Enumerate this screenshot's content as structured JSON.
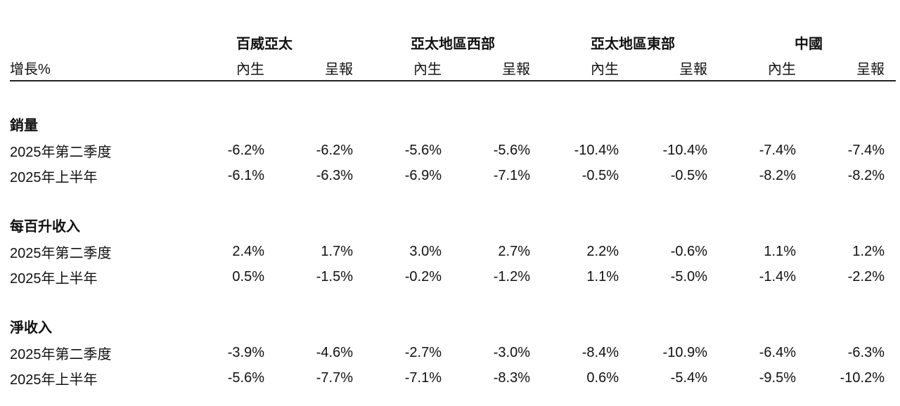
{
  "header": {
    "row_label": "增長%",
    "groups": [
      {
        "name": "百威亞太",
        "sub": [
          "內生",
          "呈報"
        ]
      },
      {
        "name": "亞太地區西部",
        "sub": [
          "內生",
          "呈報"
        ]
      },
      {
        "name": "亞太地區東部",
        "sub": [
          "內生",
          "呈報"
        ]
      },
      {
        "name": "中國",
        "sub": [
          "內生",
          "呈報"
        ]
      }
    ]
  },
  "sections": [
    {
      "title": "銷量",
      "rows": [
        {
          "label": "2025年第二季度",
          "values": [
            "-6.2%",
            "-6.2%",
            "-5.6%",
            "-5.6%",
            "-10.4%",
            "-10.4%",
            "-7.4%",
            "-7.4%"
          ]
        },
        {
          "label": "2025年上半年",
          "values": [
            "-6.1%",
            "-6.3%",
            "-6.9%",
            "-7.1%",
            "-0.5%",
            "-0.5%",
            "-8.2%",
            "-8.2%"
          ]
        }
      ]
    },
    {
      "title": "每百升收入",
      "rows": [
        {
          "label": "2025年第二季度",
          "values": [
            "2.4%",
            "1.7%",
            "3.0%",
            "2.7%",
            "2.2%",
            "-0.6%",
            "1.1%",
            "1.2%"
          ]
        },
        {
          "label": "2025年上半年",
          "values": [
            "0.5%",
            "-1.5%",
            "-0.2%",
            "-1.2%",
            "1.1%",
            "-5.0%",
            "-1.4%",
            "-2.2%"
          ]
        }
      ]
    },
    {
      "title": "淨收入",
      "rows": [
        {
          "label": "2025年第二季度",
          "values": [
            "-3.9%",
            "-4.6%",
            "-2.7%",
            "-3.0%",
            "-8.4%",
            "-10.9%",
            "-6.4%",
            "-6.3%"
          ]
        },
        {
          "label": "2025年上半年",
          "values": [
            "-5.6%",
            "-7.7%",
            "-7.1%",
            "-8.3%",
            "0.6%",
            "-5.4%",
            "-9.5%",
            "-10.2%"
          ]
        }
      ]
    }
  ]
}
